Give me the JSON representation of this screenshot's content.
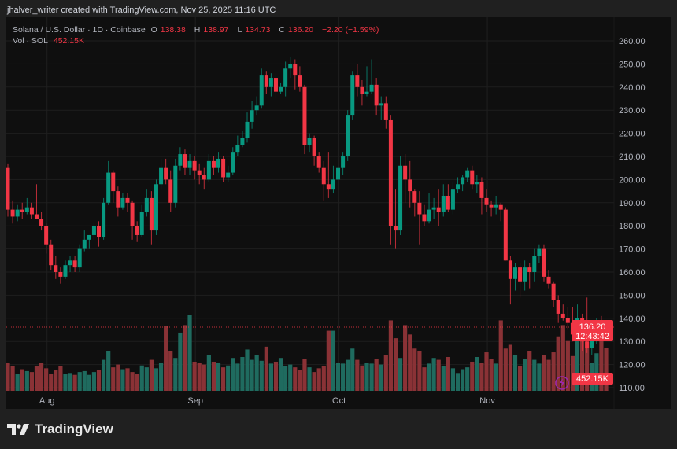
{
  "header": {
    "credit": "jhalver_writer created with TradingView.com, Nov 25, 2025 11:16 UTC"
  },
  "legend": {
    "symbol": "Solana / U.S. Dollar · 1D · Coinbase",
    "o_label": "O",
    "o": "138.38",
    "h_label": "H",
    "h": "138.97",
    "l_label": "L",
    "l": "134.73",
    "c_label": "C",
    "c": "136.20",
    "change": "−2.20 (−1.59%)",
    "vol_label": "Vol · SOL",
    "vol": "452.15K"
  },
  "price_label": {
    "price": "136.20",
    "countdown": "12:43:42"
  },
  "volume_label": "452.15K",
  "footer": {
    "brand": "TradingView"
  },
  "colors": {
    "up": "#089981",
    "down": "#f23645",
    "up_vol": "#1f6b5f",
    "down_vol": "#8a3236",
    "background": "#0f0f0f",
    "grid": "#1f1f1f"
  },
  "chart_data": {
    "type": "candlestick",
    "title": "Solana / U.S. Dollar · 1D · Coinbase",
    "start_date": "2025-07-23",
    "end_date": "2025-11-25",
    "x_ticks": [
      {
        "label": "Aug",
        "index": 9
      },
      {
        "label": "Sep",
        "index": 40
      },
      {
        "label": "Oct",
        "index": 70
      },
      {
        "label": "Nov",
        "index": 101
      }
    ],
    "y_ticks": [
      "260.00",
      "250.00",
      "240.00",
      "230.00",
      "220.00",
      "210.00",
      "200.00",
      "190.00",
      "180.00",
      "170.00",
      "160.00",
      "150.00",
      "140.00",
      "130.00",
      "120.00",
      "110.00"
    ],
    "ylim": [
      110,
      260
    ],
    "grid": true,
    "last_price": 136.2,
    "ohlc": [
      [
        205,
        207,
        184,
        187
      ],
      [
        187,
        191,
        181,
        184
      ],
      [
        184,
        189,
        182,
        187
      ],
      [
        187,
        190,
        183,
        186
      ],
      [
        186,
        192,
        185,
        188
      ],
      [
        188,
        190,
        183,
        185
      ],
      [
        185,
        198,
        183,
        183
      ],
      [
        183,
        186,
        178,
        180
      ],
      [
        180,
        181,
        168,
        172
      ],
      [
        172,
        174,
        161,
        163
      ],
      [
        163,
        167,
        157,
        160
      ],
      [
        160,
        162,
        155,
        158
      ],
      [
        158,
        165,
        157,
        163
      ],
      [
        163,
        167,
        160,
        165
      ],
      [
        165,
        167,
        160,
        162
      ],
      [
        162,
        172,
        160,
        170
      ],
      [
        170,
        178,
        169,
        174
      ],
      [
        174,
        176,
        170,
        176
      ],
      [
        176,
        181,
        174,
        180
      ],
      [
        180,
        182,
        171,
        175
      ],
      [
        175,
        192,
        174,
        190
      ],
      [
        190,
        208,
        189,
        203
      ],
      [
        203,
        204,
        190,
        195
      ],
      [
        195,
        197,
        184,
        188
      ],
      [
        188,
        194,
        187,
        192
      ],
      [
        192,
        194,
        186,
        190
      ],
      [
        190,
        191,
        174,
        180
      ],
      [
        180,
        182,
        173,
        176
      ],
      [
        176,
        189,
        175,
        186
      ],
      [
        186,
        196,
        184,
        192
      ],
      [
        192,
        195,
        172,
        178
      ],
      [
        178,
        200,
        176,
        198
      ],
      [
        198,
        209,
        196,
        205
      ],
      [
        205,
        209,
        198,
        200
      ],
      [
        200,
        204,
        186,
        190
      ],
      [
        190,
        209,
        188,
        206
      ],
      [
        206,
        214,
        204,
        211
      ],
      [
        211,
        213,
        202,
        205
      ],
      [
        205,
        211,
        202,
        208
      ],
      [
        208,
        210,
        200,
        204
      ],
      [
        204,
        207,
        198,
        202
      ],
      [
        202,
        205,
        196,
        200
      ],
      [
        200,
        211,
        199,
        208
      ],
      [
        208,
        210,
        202,
        205
      ],
      [
        205,
        212,
        203,
        209
      ],
      [
        209,
        210,
        199,
        201
      ],
      [
        201,
        206,
        199,
        203
      ],
      [
        203,
        214,
        202,
        212
      ],
      [
        212,
        219,
        210,
        215
      ],
      [
        215,
        221,
        214,
        218
      ],
      [
        218,
        229,
        216,
        225
      ],
      [
        225,
        234,
        222,
        230
      ],
      [
        230,
        236,
        228,
        232
      ],
      [
        232,
        248,
        231,
        245
      ],
      [
        245,
        247,
        237,
        240
      ],
      [
        240,
        246,
        236,
        244
      ],
      [
        244,
        246,
        235,
        238
      ],
      [
        238,
        242,
        237,
        240
      ],
      [
        240,
        251,
        236,
        248
      ],
      [
        248,
        253,
        244,
        250
      ],
      [
        250,
        252,
        239,
        245
      ],
      [
        245,
        249,
        238,
        240
      ],
      [
        240,
        241,
        211,
        215
      ],
      [
        215,
        220,
        212,
        218
      ],
      [
        218,
        219,
        206,
        210
      ],
      [
        210,
        212,
        203,
        205
      ],
      [
        205,
        208,
        191,
        198
      ],
      [
        198,
        212,
        192,
        196
      ],
      [
        196,
        206,
        194,
        200
      ],
      [
        200,
        207,
        196,
        205
      ],
      [
        205,
        212,
        202,
        210
      ],
      [
        210,
        230,
        208,
        228
      ],
      [
        228,
        247,
        226,
        245
      ],
      [
        245,
        250,
        236,
        240
      ],
      [
        240,
        243,
        232,
        237
      ],
      [
        237,
        249,
        236,
        238
      ],
      [
        238,
        252,
        237,
        241
      ],
      [
        241,
        244,
        228,
        232
      ],
      [
        232,
        236,
        226,
        233
      ],
      [
        233,
        236,
        222,
        226
      ],
      [
        226,
        228,
        172,
        180
      ],
      [
        180,
        196,
        170,
        178
      ],
      [
        178,
        210,
        176,
        206
      ],
      [
        206,
        211,
        190,
        200
      ],
      [
        200,
        208,
        188,
        195
      ],
      [
        195,
        196,
        184,
        190
      ],
      [
        190,
        195,
        172,
        185
      ],
      [
        185,
        189,
        180,
        182
      ],
      [
        182,
        194,
        181,
        187
      ],
      [
        187,
        192,
        183,
        188
      ],
      [
        188,
        196,
        180,
        186
      ],
      [
        186,
        198,
        184,
        193
      ],
      [
        193,
        198,
        186,
        187
      ],
      [
        187,
        199,
        185,
        196
      ],
      [
        196,
        201,
        194,
        198
      ],
      [
        198,
        202,
        195,
        201
      ],
      [
        201,
        205,
        199,
        204
      ],
      [
        204,
        206,
        196,
        198
      ],
      [
        198,
        202,
        194,
        199
      ],
      [
        199,
        201,
        185,
        192
      ],
      [
        192,
        196,
        186,
        189
      ],
      [
        189,
        191,
        184,
        188
      ],
      [
        188,
        193,
        185,
        189
      ],
      [
        189,
        190,
        182,
        187
      ],
      [
        187,
        188,
        165,
        165
      ],
      [
        165,
        167,
        146,
        157
      ],
      [
        157,
        164,
        152,
        162
      ],
      [
        162,
        164,
        149,
        156
      ],
      [
        156,
        165,
        152,
        162
      ],
      [
        162,
        164,
        153,
        160
      ],
      [
        160,
        170,
        156,
        167
      ],
      [
        167,
        172,
        164,
        170
      ],
      [
        170,
        172,
        156,
        158
      ],
      [
        158,
        161,
        153,
        155
      ],
      [
        155,
        156,
        145,
        148
      ],
      [
        148,
        150,
        138,
        142
      ],
      [
        142,
        146,
        139,
        140
      ],
      [
        140,
        145,
        135,
        138
      ],
      [
        138,
        145,
        130,
        133
      ],
      [
        133,
        146,
        132,
        140
      ],
      [
        140,
        142,
        126,
        130
      ],
      [
        130,
        149,
        125,
        127
      ],
      [
        127,
        132,
        124,
        131
      ],
      [
        131,
        140,
        129,
        139
      ],
      [
        139,
        141,
        136,
        138.4
      ],
      [
        138.38,
        138.97,
        134.73,
        136.2
      ]
    ],
    "volume_unit": "K",
    "volume": [
      300,
      260,
      180,
      230,
      210,
      200,
      260,
      300,
      240,
      180,
      220,
      260,
      180,
      190,
      170,
      200,
      210,
      170,
      200,
      220,
      330,
      420,
      250,
      280,
      230,
      240,
      200,
      180,
      270,
      250,
      330,
      240,
      300,
      690,
      420,
      350,
      620,
      700,
      810,
      310,
      300,
      280,
      380,
      310,
      300,
      250,
      270,
      350,
      290,
      360,
      440,
      330,
      380,
      320,
      470,
      290,
      310,
      350,
      260,
      280,
      250,
      220,
      340,
      250,
      200,
      240,
      260,
      640,
      640,
      300,
      290,
      330,
      450,
      330,
      270,
      300,
      290,
      340,
      280,
      380,
      750,
      560,
      350,
      700,
      600,
      450,
      420,
      250,
      290,
      350,
      330,
      260,
      360,
      240,
      190,
      230,
      250,
      310,
      360,
      300,
      410,
      340,
      290,
      750,
      450,
      490,
      380,
      260,
      340,
      420,
      330,
      290,
      380,
      330,
      410,
      580,
      700,
      530,
      370,
      770,
      600,
      520,
      300,
      400,
      620,
      452.15
    ]
  }
}
